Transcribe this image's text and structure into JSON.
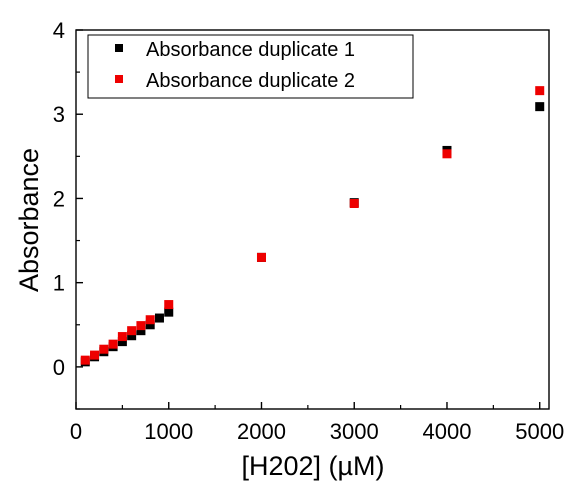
{
  "chart_data": {
    "type": "scatter",
    "xlabel": "[H202] (µM)",
    "ylabel": "Absorbance",
    "xlim": [
      0,
      5100
    ],
    "ylim": [
      -0.5,
      4
    ],
    "x_ticks": [
      0,
      1000,
      2000,
      3000,
      4000,
      5000
    ],
    "y_ticks": [
      0,
      1,
      2,
      3,
      4
    ],
    "grid": false,
    "legend_position": "top-left",
    "series": [
      {
        "name": "Absorbance duplicate 1",
        "color": "#000000",
        "marker": "square",
        "x": [
          100,
          200,
          300,
          400,
          500,
          600,
          700,
          800,
          900,
          1000,
          2000,
          3000,
          4000,
          5000
        ],
        "y": [
          0.06,
          0.12,
          0.18,
          0.24,
          0.3,
          0.37,
          0.43,
          0.5,
          0.58,
          0.65,
          1.3,
          1.95,
          2.57,
          3.09
        ]
      },
      {
        "name": "Absorbance duplicate 2",
        "color": "#ee0000",
        "marker": "square",
        "x": [
          100,
          200,
          300,
          400,
          500,
          600,
          700,
          800,
          1000,
          2000,
          3000,
          4000,
          5000
        ],
        "y": [
          0.08,
          0.14,
          0.21,
          0.27,
          0.36,
          0.43,
          0.49,
          0.56,
          0.74,
          1.3,
          1.94,
          2.53,
          3.28
        ]
      }
    ]
  }
}
